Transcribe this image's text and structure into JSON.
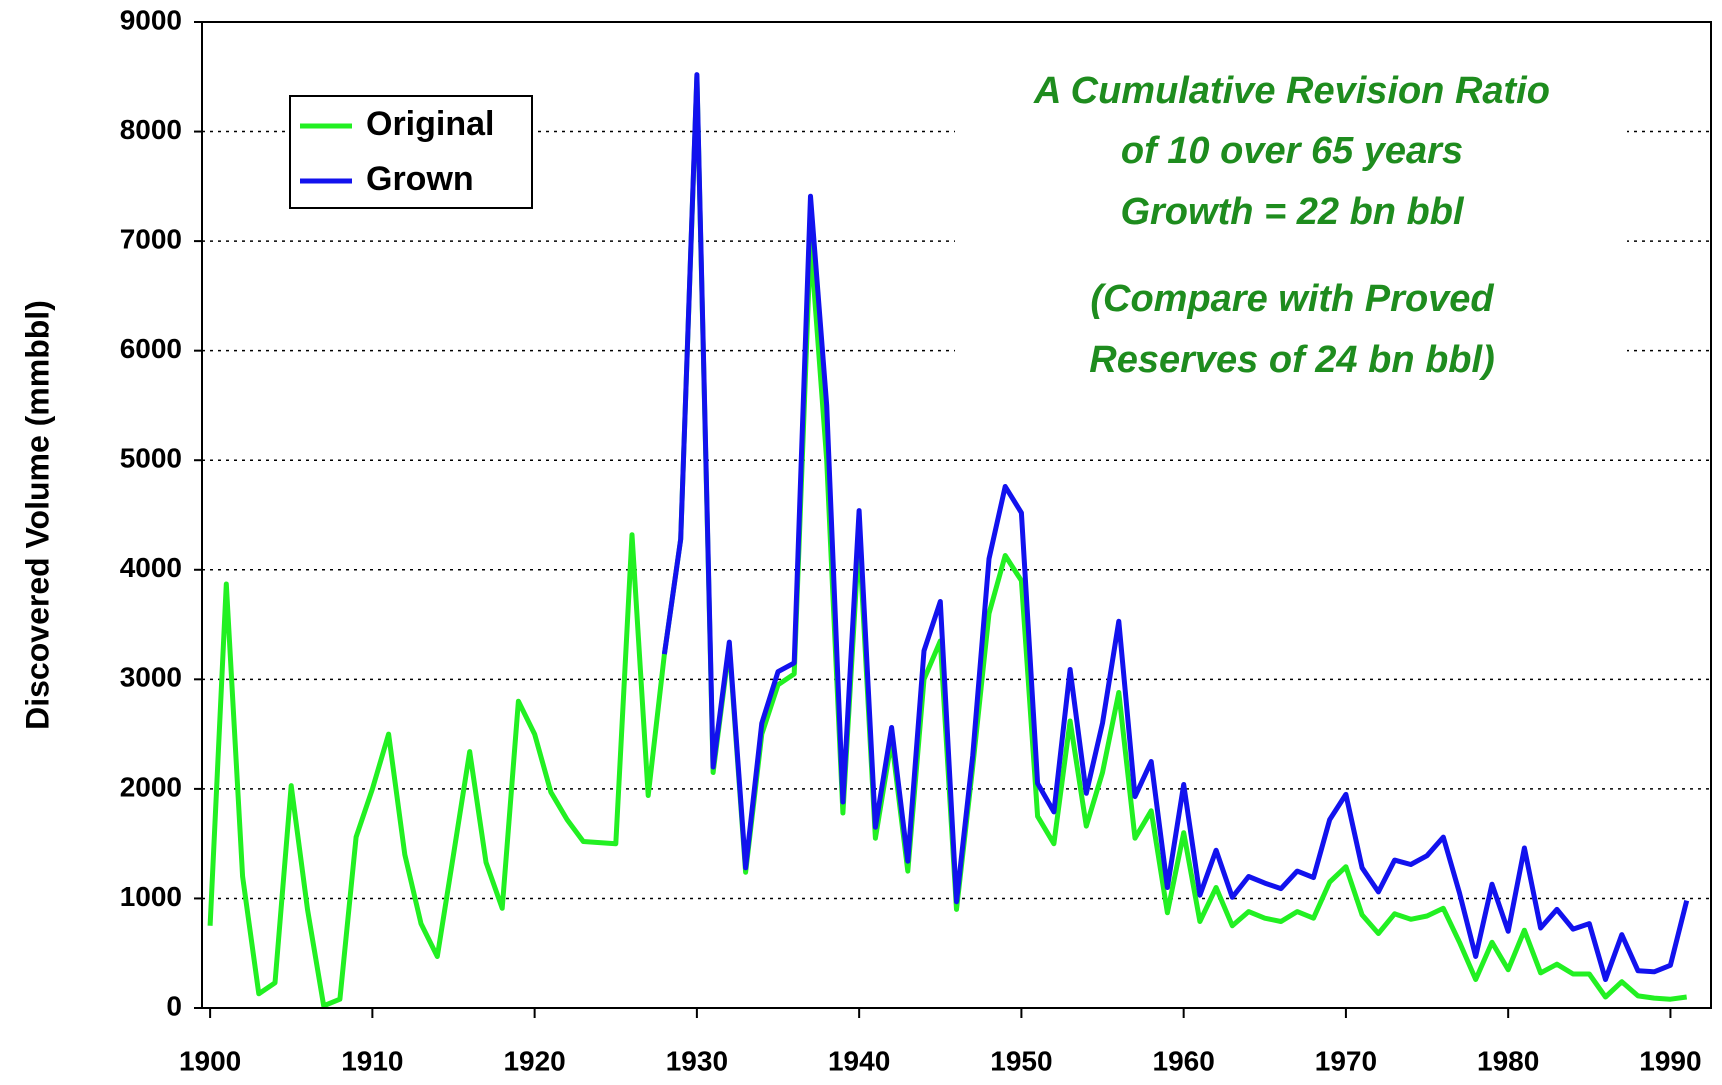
{
  "chart_data": {
    "type": "line",
    "y_label": "Discovered Volume (mmbbl)",
    "x": [
      1900,
      1901,
      1902,
      1903,
      1904,
      1905,
      1906,
      1907,
      1908,
      1909,
      1910,
      1911,
      1912,
      1913,
      1914,
      1915,
      1916,
      1917,
      1918,
      1919,
      1920,
      1921,
      1922,
      1923,
      1924,
      1925,
      1926,
      1927,
      1928,
      1929,
      1930,
      1931,
      1932,
      1933,
      1934,
      1935,
      1936,
      1937,
      1938,
      1939,
      1940,
      1941,
      1942,
      1943,
      1944,
      1945,
      1946,
      1947,
      1948,
      1949,
      1950,
      1951,
      1952,
      1953,
      1954,
      1955,
      1956,
      1957,
      1958,
      1959,
      1960,
      1961,
      1962,
      1963,
      1964,
      1965,
      1966,
      1967,
      1968,
      1969,
      1970,
      1971,
      1972,
      1973,
      1974,
      1975,
      1976,
      1977,
      1978,
      1979,
      1980,
      1981,
      1982,
      1983,
      1984,
      1985,
      1986,
      1987,
      1988,
      1989,
      1990,
      1991
    ],
    "series": [
      {
        "name": "Original",
        "color": "#22f022",
        "values": [
          750,
          3870,
          1200,
          130,
          230,
          2030,
          900,
          20,
          80,
          1560,
          2000,
          2500,
          1400,
          770,
          470,
          1400,
          2340,
          1330,
          910,
          2800,
          2500,
          1970,
          1720,
          1520,
          1510,
          1500,
          4320,
          1940,
          3230,
          4280,
          8500,
          2150,
          3300,
          1240,
          2500,
          2950,
          3050,
          7000,
          5000,
          1780,
          4300,
          1550,
          2450,
          1250,
          3000,
          3350,
          900,
          2200,
          3600,
          4130,
          3900,
          1750,
          1500,
          2620,
          1660,
          2150,
          2880,
          1550,
          1800,
          870,
          1600,
          790,
          1100,
          750,
          880,
          820,
          790,
          880,
          820,
          1150,
          1290,
          850,
          680,
          860,
          810,
          840,
          910,
          600,
          260,
          600,
          350,
          710,
          320,
          400,
          310,
          310,
          100,
          240,
          110,
          90,
          80,
          100
        ]
      },
      {
        "name": "Grown",
        "color": "#1212ee",
        "values": [
          null,
          null,
          null,
          null,
          null,
          null,
          null,
          null,
          null,
          null,
          null,
          null,
          null,
          null,
          null,
          null,
          null,
          null,
          null,
          null,
          null,
          null,
          null,
          null,
          null,
          null,
          null,
          null,
          3230,
          4280,
          8520,
          2200,
          3340,
          1280,
          2600,
          3070,
          3150,
          7410,
          5500,
          1880,
          4540,
          1650,
          2560,
          1340,
          3260,
          3710,
          970,
          2300,
          4100,
          4760,
          4520,
          2050,
          1790,
          3090,
          1960,
          2600,
          3530,
          1930,
          2250,
          1100,
          2040,
          1030,
          1440,
          1010,
          1200,
          1140,
          1090,
          1250,
          1190,
          1720,
          1950,
          1280,
          1060,
          1350,
          1310,
          1390,
          1560,
          1050,
          470,
          1130,
          700,
          1460,
          730,
          900,
          720,
          770,
          260,
          670,
          340,
          330,
          390,
          980
        ]
      }
    ],
    "xlim": [
      1899.5,
      1992.5
    ],
    "xticks": [
      1900,
      1910,
      1920,
      1930,
      1940,
      1950,
      1960,
      1970,
      1980,
      1990
    ],
    "ylim": [
      0,
      9000
    ],
    "yticks": [
      0,
      1000,
      2000,
      3000,
      4000,
      5000,
      6000,
      7000,
      8000,
      9000
    ],
    "grid": true,
    "legend": "upper left",
    "annotations": [
      "A Cumulative Revision Ratio",
      "of 10 over 65 years",
      "Growth = 22 bn bbl",
      "(Compare with Proved",
      "Reserves of 24 bn bbl)"
    ]
  }
}
